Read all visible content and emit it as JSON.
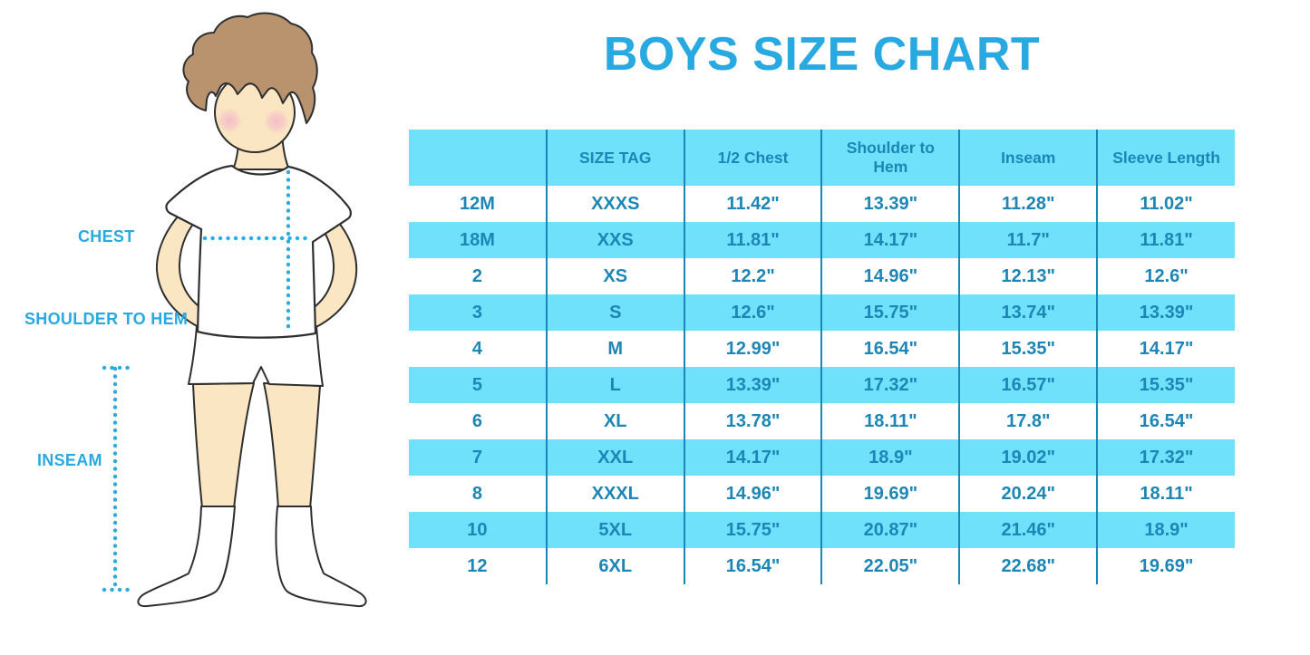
{
  "page": {
    "title": "BOYS SIZE CHART"
  },
  "figure": {
    "labels": {
      "chest": "CHEST",
      "shoulder_to_hem": "SHOULDER TO HEM",
      "inseam": "INSEAM"
    }
  },
  "colors": {
    "title_blue": "#29A9E1",
    "label_blue": "#29A9E1",
    "dotted_blue": "#2AACE3",
    "table_band_cyan": "#70E1FA",
    "table_ink_blue": "#1C86B6",
    "skin": "#FAE6C3",
    "hair_brown": "#B9926E",
    "cheek_pink": "#F3AFC9",
    "outline": "#2F2F2F"
  },
  "chart_data": {
    "type": "table",
    "title": "BOYS SIZE CHART",
    "columns": [
      "",
      "SIZE TAG",
      "1/2 Chest",
      "Shoulder to Hem",
      "Inseam",
      "Sleeve Length"
    ],
    "rows": [
      [
        "12M",
        "XXXS",
        "11.42\"",
        "13.39\"",
        "11.28\"",
        "11.02\""
      ],
      [
        "18M",
        "XXS",
        "11.81\"",
        "14.17\"",
        "11.7\"",
        "11.81\""
      ],
      [
        "2",
        "XS",
        "12.2\"",
        "14.96\"",
        "12.13\"",
        "12.6\""
      ],
      [
        "3",
        "S",
        "12.6\"",
        "15.75\"",
        "13.74\"",
        "13.39\""
      ],
      [
        "4",
        "M",
        "12.99\"",
        "16.54\"",
        "15.35\"",
        "14.17\""
      ],
      [
        "5",
        "L",
        "13.39\"",
        "17.32\"",
        "16.57\"",
        "15.35\""
      ],
      [
        "6",
        "XL",
        "13.78\"",
        "18.11\"",
        "17.8\"",
        "16.54\""
      ],
      [
        "7",
        "XXL",
        "14.17\"",
        "18.9\"",
        "19.02\"",
        "17.32\""
      ],
      [
        "8",
        "XXXL",
        "14.96\"",
        "19.69\"",
        "20.24\"",
        "18.11\""
      ],
      [
        "10",
        "5XL",
        "15.75\"",
        "20.87\"",
        "21.46\"",
        "18.9\""
      ],
      [
        "12",
        "6XL",
        "16.54\"",
        "22.05\"",
        "22.68\"",
        "19.69\""
      ]
    ],
    "layout": {
      "header_fill": "#70E1FA",
      "banded_rows": true,
      "band_colors": [
        "#FFFFFF",
        "#70E1FA"
      ],
      "column_dividers": true,
      "grid": "vertical-only"
    }
  }
}
